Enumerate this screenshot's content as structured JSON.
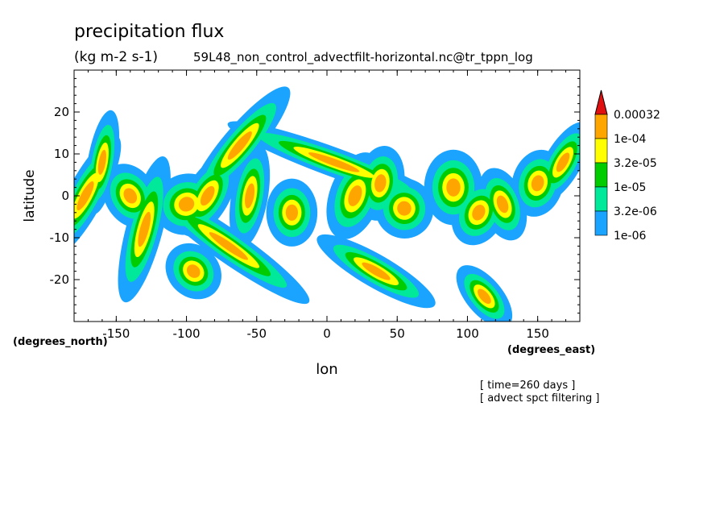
{
  "chart_data": {
    "type": "heatmap",
    "title": "precipitation flux",
    "units": "(kg m-2 s-1)",
    "source": "59L48_non_control_advectfilt-horizontal.nc@tr_tppn_log",
    "xlabel": "lon",
    "ylabel": "latitude",
    "x_unit_note": "(degrees_east)",
    "y_unit_note": "(degrees_north)",
    "xlim": [
      -180,
      180
    ],
    "ylim": [
      -30,
      30
    ],
    "x_ticks": [
      "-150",
      "-100",
      "-50",
      "0",
      "50",
      "100",
      "150"
    ],
    "y_ticks": [
      "20",
      "10",
      "0",
      "-10",
      "-20"
    ],
    "colorbar": {
      "labels": [
        "0.00032",
        "1e-04",
        "3.2e-05",
        "1e-05",
        "3.2e-06",
        "1e-06"
      ],
      "colors": [
        "#e01010",
        "#ffa500",
        "#ffff00",
        "#00cc00",
        "#00e89a",
        "#1aa3ff"
      ]
    },
    "notes": [
      "[ time=260 days ]",
      "[ advect spct filtering ]"
    ]
  }
}
